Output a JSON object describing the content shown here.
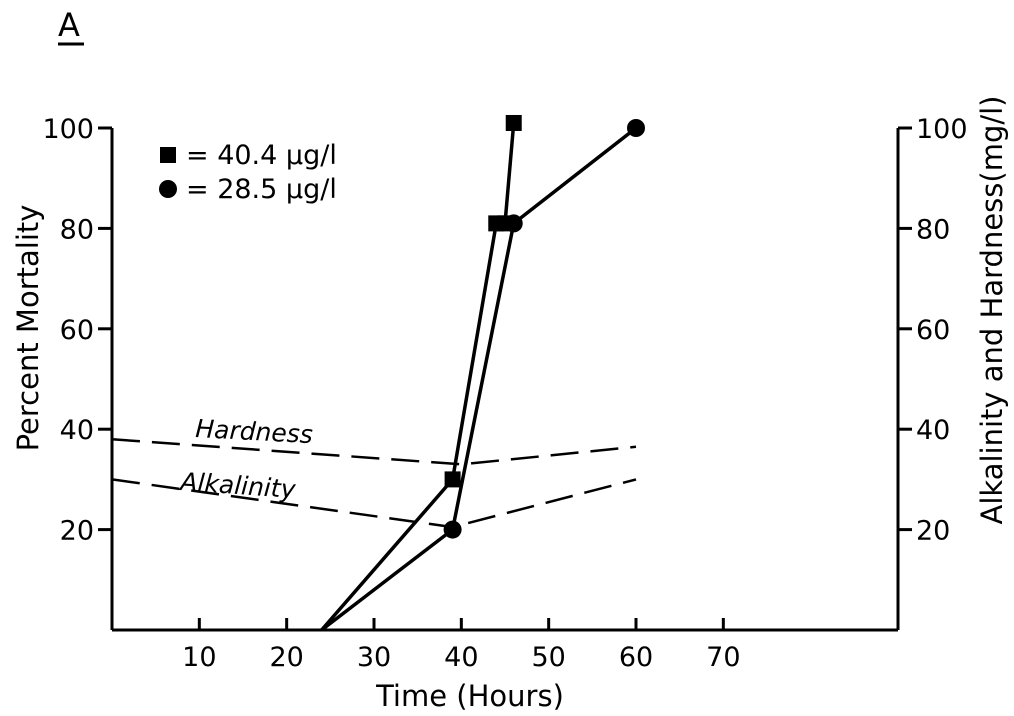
{
  "chart_data": {
    "type": "line",
    "panel_label": "A",
    "xlabel": "Time (Hours)",
    "ylabel": "Percent Mortality",
    "y2label": "Alkalinity and Hardness(mg/l)",
    "xlim": [
      0,
      90
    ],
    "ylim": [
      0,
      100
    ],
    "y2lim": [
      0,
      100
    ],
    "x_ticks": [
      10,
      20,
      30,
      40,
      50,
      60,
      70
    ],
    "y_ticks": [
      20,
      40,
      60,
      80,
      100
    ],
    "y2_ticks": [
      20,
      40,
      60,
      80,
      100
    ],
    "grid": false,
    "legend_position": "top-left",
    "series": [
      {
        "name": "= 40.4 µg/l",
        "marker": "square",
        "axis": "left",
        "line_style": "solid",
        "points": [
          {
            "x": 24,
            "y": 0,
            "marker": false
          },
          {
            "x": 39,
            "y": 30,
            "marker": true
          },
          {
            "x": 44,
            "y": 81,
            "marker": true
          },
          {
            "x": 45,
            "y": 81,
            "marker": true
          },
          {
            "x": 46,
            "y": 101,
            "marker": true
          }
        ]
      },
      {
        "name": "= 28.5 µg/l",
        "marker": "circle",
        "axis": "left",
        "line_style": "solid",
        "points": [
          {
            "x": 24,
            "y": 0,
            "marker": false
          },
          {
            "x": 39,
            "y": 20,
            "marker": true
          },
          {
            "x": 46,
            "y": 81,
            "marker": true
          },
          {
            "x": 60,
            "y": 100,
            "marker": true
          }
        ]
      },
      {
        "name": "Hardness",
        "marker": "none",
        "axis": "right",
        "line_style": "dashed",
        "points": [
          {
            "x": 0,
            "y": 38
          },
          {
            "x": 40,
            "y": 33
          },
          {
            "x": 60,
            "y": 36.5
          }
        ]
      },
      {
        "name": "Alkalinity",
        "marker": "none",
        "axis": "right",
        "line_style": "dashed",
        "points": [
          {
            "x": 0,
            "y": 30
          },
          {
            "x": 39,
            "y": 20.5
          },
          {
            "x": 60,
            "y": 30
          }
        ]
      }
    ],
    "annotations": [
      {
        "text": "Hardness",
        "series": "Hardness"
      },
      {
        "text": "Alkalinity",
        "series": "Alkalinity"
      }
    ],
    "colors": {
      "ink": "#000000",
      "background": "#ffffff"
    }
  }
}
